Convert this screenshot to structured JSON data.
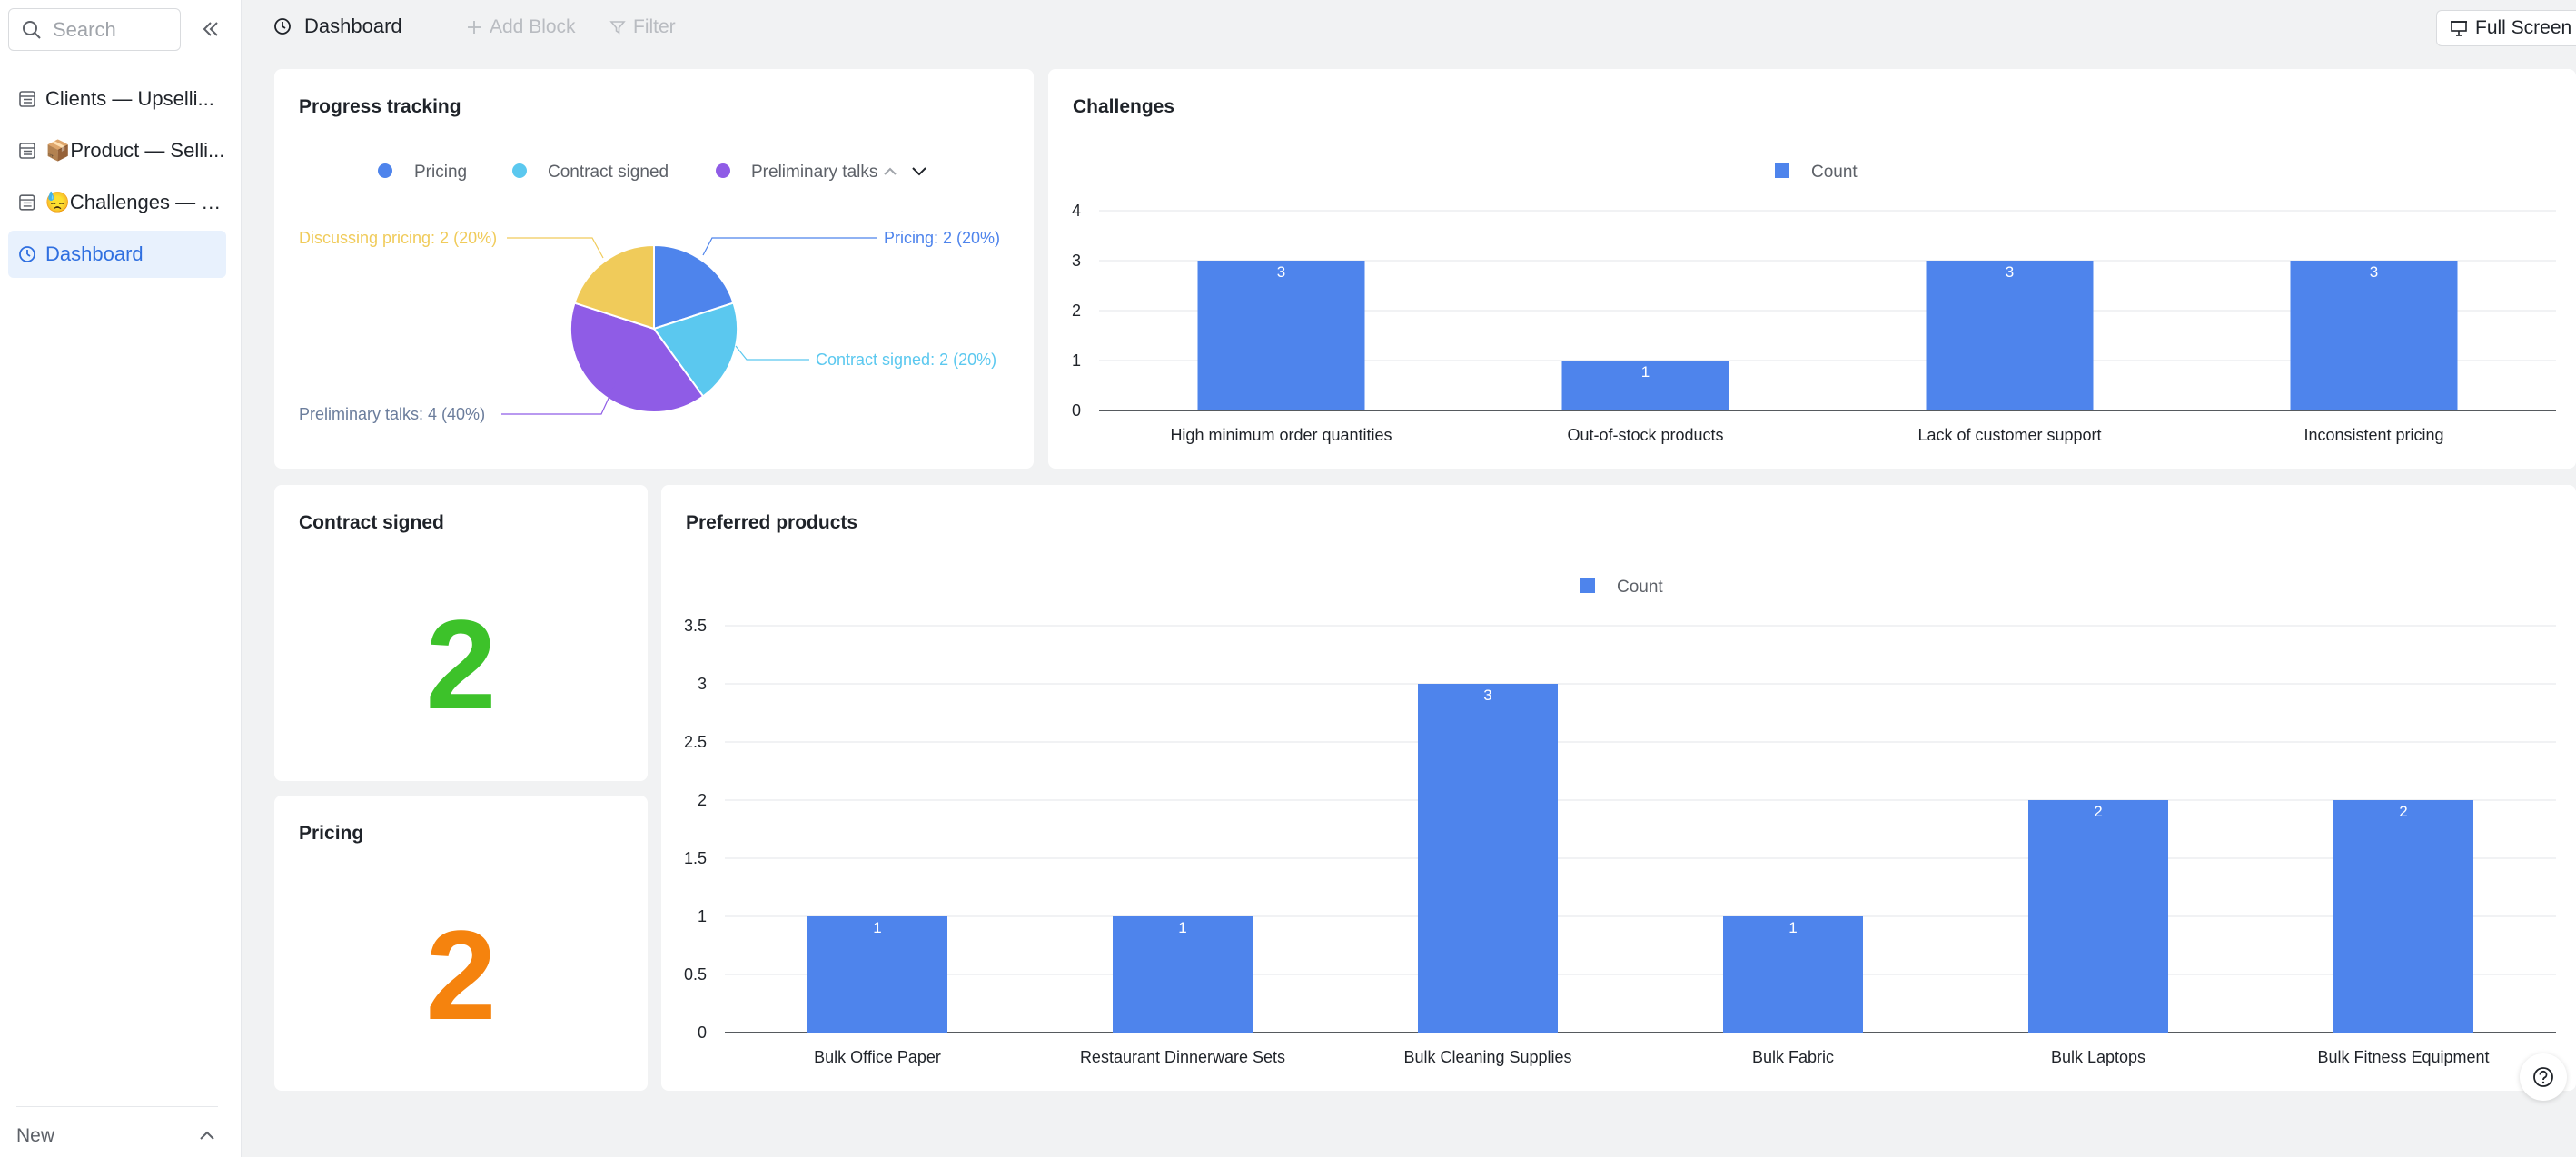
{
  "sidebar": {
    "search_placeholder": "Search",
    "items": [
      {
        "label": "Clients — Upselli...",
        "icon": "table-icon"
      },
      {
        "label": "📦Product — Selli...",
        "icon": "table-icon"
      },
      {
        "label": "😓Challenges — S...",
        "icon": "table-icon"
      },
      {
        "label": "Dashboard",
        "icon": "dashboard-icon"
      }
    ],
    "new_label": "New"
  },
  "topbar": {
    "title": "Dashboard",
    "add_block": "Add Block",
    "filter": "Filter",
    "full_screen": "Full Screen"
  },
  "colors": {
    "accent": "#2f6fe0",
    "bar": "#4e84ec",
    "green": "#3dc22a",
    "orange": "#f5830e",
    "pie_pricing": "#4e84ec",
    "pie_contract": "#5bc8ef",
    "pie_preliminary": "#8f5ce6",
    "pie_discussing": "#f0cb5a"
  },
  "cards": {
    "progress": {
      "title": "Progress tracking",
      "legend": [
        "Pricing",
        "Contract signed",
        "Preliminary talks"
      ],
      "labels": {
        "pricing": "Pricing: 2 (20%)",
        "contract": "Contract signed: 2 (20%)",
        "preliminary": "Preliminary talks: 4 (40%)",
        "discussing": "Discussing pricing: 2 (20%)"
      }
    },
    "challenges": {
      "title": "Challenges",
      "legend": "Count"
    },
    "contract_signed": {
      "title": "Contract signed",
      "value": "2"
    },
    "pricing": {
      "title": "Pricing",
      "value": "2"
    },
    "preferred": {
      "title": "Preferred products",
      "legend": "Count"
    }
  },
  "chart_data": [
    {
      "type": "pie",
      "title": "Progress tracking",
      "categories": [
        "Pricing",
        "Contract signed",
        "Preliminary talks",
        "Discussing pricing"
      ],
      "values": [
        2,
        2,
        4,
        2
      ],
      "percents": [
        20,
        20,
        40,
        20
      ]
    },
    {
      "type": "bar",
      "title": "Challenges",
      "categories": [
        "High minimum order quantities",
        "Out-of-stock products",
        "Lack of customer support",
        "Inconsistent pricing"
      ],
      "series": [
        {
          "name": "Count",
          "values": [
            3,
            1,
            3,
            3
          ]
        }
      ],
      "yticks": [
        "0",
        "1",
        "2",
        "3",
        "4"
      ],
      "ylim": [
        0,
        4
      ],
      "grid": true,
      "legend": "top-center"
    },
    {
      "type": "bar",
      "title": "Preferred products",
      "categories": [
        "Bulk Office Paper",
        "Restaurant Dinnerware Sets",
        "Bulk Cleaning Supplies",
        "Bulk Fabric",
        "Bulk Laptops",
        "Bulk Fitness Equipment"
      ],
      "series": [
        {
          "name": "Count",
          "values": [
            1,
            1,
            3,
            1,
            2,
            2
          ]
        }
      ],
      "yticks": [
        "0",
        "0.5",
        "1",
        "1.5",
        "2",
        "2.5",
        "3",
        "3.5"
      ],
      "ylim": [
        0,
        3.5
      ],
      "grid": true,
      "legend": "top-center"
    }
  ]
}
